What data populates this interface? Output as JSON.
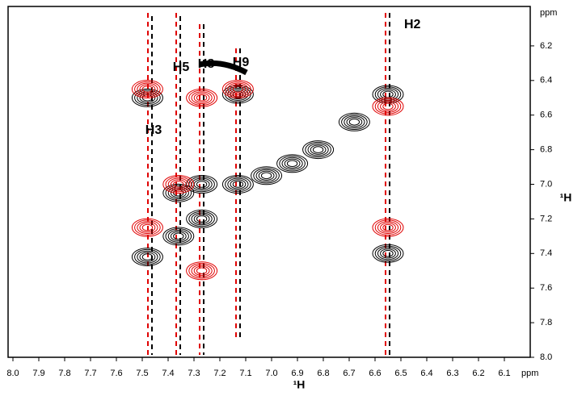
{
  "chart_data": {
    "type": "contour",
    "xlabel": "¹H",
    "ylabel": "¹H",
    "xunit": "ppm",
    "yunit": "ppm",
    "xlim": [
      8.0,
      6.0
    ],
    "ylim": [
      6.0,
      8.0
    ],
    "xticks": [
      {
        "value": 8.0,
        "label": "8.0"
      },
      7.9,
      7.8,
      7.7,
      7.6,
      7.5,
      7.4,
      7.3,
      7.2,
      7.1,
      {
        "value": 7.0,
        "label": "7.0"
      },
      6.9,
      6.8,
      6.7,
      6.6,
      6.5,
      6.4,
      6.3,
      6.2,
      6.1
    ],
    "yticks": [
      6.2,
      6.4,
      6.6,
      6.8,
      {
        "value": 7.0,
        "label": "7.0"
      },
      7.2,
      7.4,
      7.6,
      7.8,
      {
        "value": 8.0,
        "label": "8.0"
      }
    ],
    "series": [
      {
        "color": "#000000",
        "x": [
          7.48,
          7.36,
          7.27,
          7.13,
          7.02,
          6.92,
          6.82,
          6.68,
          6.55,
          7.48,
          6.55,
          7.36,
          7.27,
          7.13
        ],
        "y": [
          7.42,
          7.3,
          7.2,
          7.0,
          6.95,
          6.88,
          6.8,
          6.64,
          6.48,
          6.5,
          7.4,
          7.05,
          7.0,
          6.48
        ]
      },
      {
        "color": "#e00000",
        "x": [
          7.48,
          7.36,
          7.27,
          7.13,
          6.55,
          6.55,
          7.48,
          7.27
        ],
        "y": [
          7.25,
          7.0,
          6.5,
          6.45,
          7.25,
          6.55,
          6.45,
          7.5
        ]
      }
    ],
    "annotations": [
      "H2",
      "H3",
      "H5",
      "H8",
      "H9"
    ]
  }
}
